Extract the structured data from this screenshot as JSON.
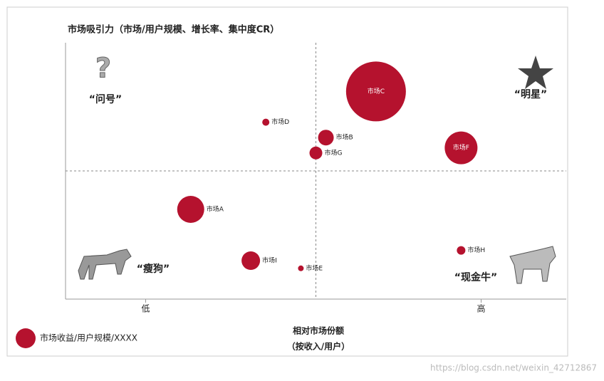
{
  "chart_data": {
    "type": "bubble",
    "title": "市场吸引力（市场/用户规模、增长率、集中度CR）",
    "x_label": [
      "相对市场份额",
      "（按收入/用户）"
    ],
    "xlim": [
      0,
      100
    ],
    "ylim": [
      0,
      100
    ],
    "xticks": [
      {
        "value": 16,
        "label": "低"
      },
      {
        "value": 83,
        "label": "高"
      }
    ],
    "quadrant_split": [
      50,
      50
    ],
    "quadrants": [
      "“问号”",
      "“明星”",
      "“瘦狗”",
      "“现金牛”"
    ],
    "series": [
      {
        "name": "市场收益/用户规模/XXXX",
        "color": "#b5122e",
        "labels": [
          "市场A",
          "市场B",
          "市场C",
          "市场D",
          "市场E",
          "市场F",
          "市场G",
          "市场H",
          "市场I"
        ],
        "x": [
          25,
          52,
          62,
          40,
          47,
          79,
          50,
          79,
          37
        ],
        "values": [
          35,
          63,
          81,
          69,
          12,
          59,
          57,
          19,
          15
        ],
        "sizes": [
          19,
          11,
          42,
          5,
          4,
          23,
          9,
          6,
          13
        ]
      }
    ],
    "watermark": "https://blog.csdn.net/weixin_42712867"
  }
}
